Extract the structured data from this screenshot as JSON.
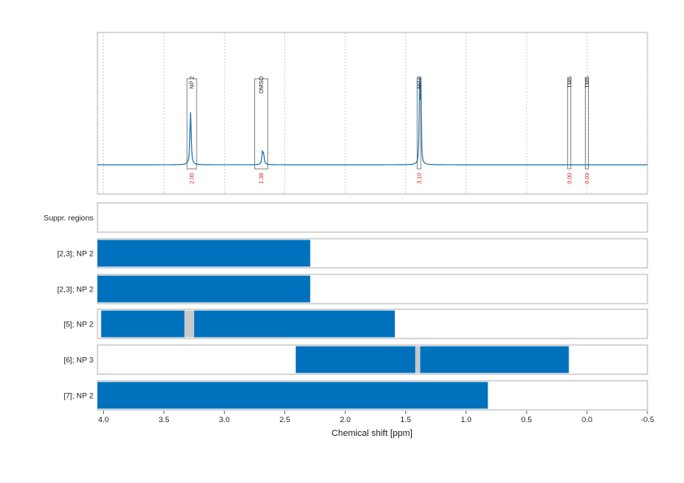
{
  "chart_data": {
    "type": "spectrum",
    "xlabel": "Chemical shift [ppm]",
    "xlim": [
      4.05,
      -0.5
    ],
    "xticks": [
      4.0,
      3.5,
      3.0,
      2.5,
      2.0,
      1.5,
      1.0,
      0.5,
      0.0,
      -0.5
    ],
    "xtick_labels": [
      "4.0",
      "3.5",
      "3.0",
      "2.5",
      "2.0",
      "1.5",
      "1.0",
      "0.5",
      "0.0",
      "-0.5"
    ],
    "colors": {
      "spectrum": "#1f77b4",
      "bar": "#0072bd",
      "suppressed": "#c8c8c8",
      "integral": "#e02020",
      "frame": "#b0b0b0"
    },
    "spectrum": {
      "baseline": 0.0,
      "peaks": [
        {
          "ppm": 3.28,
          "height": 0.62,
          "width": 0.006
        },
        {
          "ppm": 2.685,
          "height": 0.14,
          "width": 0.006
        },
        {
          "ppm": 2.675,
          "height": 0.1,
          "width": 0.006
        },
        {
          "ppm": 1.385,
          "height": 0.9,
          "width": 0.004
        },
        {
          "ppm": 1.375,
          "height": 0.9,
          "width": 0.004
        }
      ]
    },
    "annotations": [
      {
        "label": "NP 2",
        "from": 3.31,
        "to": 3.23,
        "integral": "2.00"
      },
      {
        "label": "DMSO",
        "from": 2.75,
        "to": 2.64,
        "integral": "1.38"
      },
      {
        "label": "NP 3",
        "from": 1.405,
        "to": 1.375,
        "integral": "3.10"
      },
      {
        "label": "TMS",
        "from": 0.16,
        "to": 0.135,
        "integral": "0.00"
      },
      {
        "label": "TMS",
        "from": 0.015,
        "to": -0.01,
        "integral": "0.03"
      }
    ],
    "rows": [
      {
        "label": "Suppr. regions",
        "segments": []
      },
      {
        "label": "[2,3]; NP 2",
        "segments": [
          {
            "from": 4.05,
            "to": 2.29,
            "kind": "bar"
          }
        ]
      },
      {
        "label": "[2,3]; NP 2",
        "segments": [
          {
            "from": 4.05,
            "to": 2.29,
            "kind": "bar"
          }
        ]
      },
      {
        "label": "[5]; NP 2",
        "segments": [
          {
            "from": 4.02,
            "to": 3.33,
            "kind": "bar"
          },
          {
            "from": 3.33,
            "to": 3.25,
            "kind": "suppressed"
          },
          {
            "from": 3.25,
            "to": 1.59,
            "kind": "bar"
          }
        ]
      },
      {
        "label": "[6]; NP 3",
        "segments": [
          {
            "from": 2.41,
            "to": 1.42,
            "kind": "bar"
          },
          {
            "from": 1.42,
            "to": 1.38,
            "kind": "suppressed"
          },
          {
            "from": 1.38,
            "to": 0.15,
            "kind": "bar"
          }
        ]
      },
      {
        "label": "[7]; NP 2",
        "segments": [
          {
            "from": 4.05,
            "to": 0.82,
            "kind": "bar"
          }
        ]
      }
    ]
  }
}
